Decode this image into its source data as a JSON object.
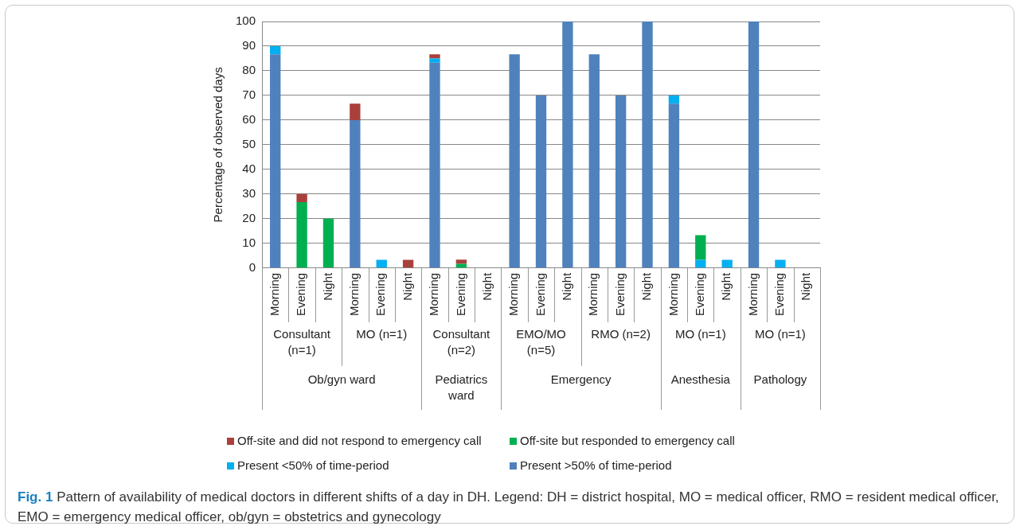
{
  "chart_data": {
    "type": "bar",
    "stacked": true,
    "ylabel": "Percentage of observed days",
    "ylim": [
      0,
      100
    ],
    "yticks": [
      0,
      10,
      20,
      30,
      40,
      50,
      60,
      70,
      80,
      90,
      100
    ],
    "grid": "y",
    "legend": "bottom",
    "categories": [
      "Morning",
      "Evening",
      "Night",
      "Morning",
      "Evening",
      "Night",
      "Morning",
      "Evening",
      "Night",
      "Morning",
      "Evening",
      "Night",
      "Morning",
      "Evening",
      "Night",
      "Morning",
      "Evening",
      "Night",
      "Morning",
      "Evening",
      "Night"
    ],
    "series": [
      {
        "name": "Present >50% of time-period",
        "color": "#4f81bd",
        "values": [
          86.7,
          0,
          0,
          60,
          0,
          0,
          83.3,
          0,
          0,
          86.7,
          70,
          100,
          86.7,
          70,
          100,
          66.7,
          0,
          0,
          100,
          0,
          0
        ]
      },
      {
        "name": "Present <50% of time-period",
        "color": "#00b0f0",
        "values": [
          3.3,
          0,
          0,
          0,
          3.3,
          0,
          1.7,
          0,
          0,
          0,
          0,
          0,
          0,
          0,
          0,
          3.3,
          3.3,
          3.3,
          0,
          3.3,
          0
        ]
      },
      {
        "name": "Off-site but responded to emergency call",
        "color": "#00b050",
        "values": [
          0,
          26.7,
          20,
          0,
          0,
          0,
          0,
          1.7,
          0,
          0,
          0,
          0,
          0,
          0,
          0,
          0,
          10,
          0,
          0,
          0,
          0
        ]
      },
      {
        "name": "Off-site and did not respond to emergency call",
        "color": "#a9403c",
        "values": [
          0,
          3.3,
          0,
          6.7,
          0,
          3.3,
          1.7,
          1.7,
          0,
          0,
          0,
          0,
          0,
          0,
          0,
          0,
          0,
          0,
          0,
          0,
          0
        ]
      }
    ],
    "annotations": [
      "Consultant (n=1)",
      "MO (n=1)",
      "Consultant (n=2)",
      "EMO/MO (n=5)",
      "RMO (n=2)",
      "MO (n=1)",
      "MO (n=1)",
      "Ob/gyn ward",
      "Pediatrics ward",
      "Emergency",
      "Anesthesia",
      "Pathology",
      "Fig. 1 Pattern of availability of medical doctors in different shifts of a day in DH. Legend: DH = district hospital, MO = medical officer, RMO = resident medical officer, EMO = emergency medical officer, ob/gyn = obstetrics and gynecology"
    ]
  }
}
